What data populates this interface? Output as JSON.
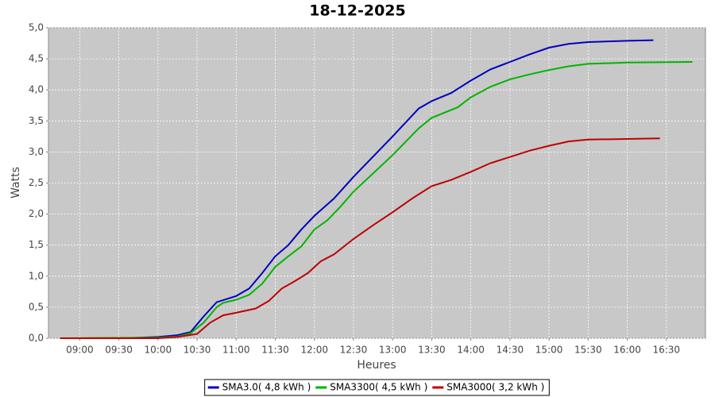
{
  "chart_data": {
    "type": "line",
    "title": "18-12-2025",
    "x_label": "Heures",
    "y_label": "Watts",
    "xlim": [
      "08:36",
      "17:00"
    ],
    "xticks": [
      "09:00",
      "09:30",
      "10:00",
      "10:30",
      "11:00",
      "11:30",
      "12:00",
      "12:30",
      "13:00",
      "13:30",
      "14:00",
      "14:30",
      "15:00",
      "15:30",
      "16:00",
      "16:30"
    ],
    "ylim": [
      0,
      5
    ],
    "yticks": [
      {
        "value": 0,
        "label": "0,0"
      },
      {
        "value": 0.5,
        "label": "0,5"
      },
      {
        "value": 1,
        "label": "1,0"
      },
      {
        "value": 1.5,
        "label": "1,5"
      },
      {
        "value": 2,
        "label": "2,0"
      },
      {
        "value": 2.5,
        "label": "2,5"
      },
      {
        "value": 3,
        "label": "3,0"
      },
      {
        "value": 3.5,
        "label": "3,5"
      },
      {
        "value": 4,
        "label": "4,0"
      },
      {
        "value": 4.5,
        "label": "4,5"
      },
      {
        "value": 5,
        "label": "5,0"
      }
    ],
    "grid": true,
    "legend": "bottom",
    "series": [
      {
        "name": "SMA3.0( 4,8 kWh )",
        "color": "#0000c0",
        "x": [
          "08:45",
          "09:30",
          "09:45",
          "10:00",
          "10:15",
          "10:25",
          "10:35",
          "10:45",
          "11:00",
          "11:10",
          "11:20",
          "11:30",
          "11:40",
          "11:50",
          "12:00",
          "12:15",
          "12:30",
          "13:00",
          "13:20",
          "13:30",
          "13:45",
          "14:00",
          "14:15",
          "14:30",
          "14:45",
          "15:00",
          "15:15",
          "15:30",
          "16:00",
          "16:20"
        ],
        "values": [
          0,
          0,
          0.01,
          0.02,
          0.05,
          0.1,
          0.35,
          0.58,
          0.68,
          0.8,
          1.05,
          1.32,
          1.5,
          1.75,
          1.97,
          2.25,
          2.6,
          3.25,
          3.7,
          3.82,
          3.95,
          4.15,
          4.33,
          4.45,
          4.57,
          4.68,
          4.74,
          4.77,
          4.79,
          4.8
        ]
      },
      {
        "name": "SMA3300( 4,5 kWh )",
        "color": "#00b400",
        "x": [
          "08:45",
          "10:00",
          "10:15",
          "10:25",
          "10:35",
          "10:45",
          "10:50",
          "11:00",
          "11:10",
          "11:20",
          "11:30",
          "11:40",
          "11:50",
          "12:00",
          "12:10",
          "12:20",
          "12:30",
          "13:00",
          "13:20",
          "13:30",
          "13:50",
          "14:00",
          "14:15",
          "14:30",
          "14:45",
          "15:00",
          "15:15",
          "15:30",
          "16:00",
          "16:50"
        ],
        "values": [
          0,
          0.01,
          0.03,
          0.08,
          0.25,
          0.5,
          0.57,
          0.62,
          0.7,
          0.88,
          1.15,
          1.32,
          1.48,
          1.75,
          1.9,
          2.12,
          2.36,
          2.95,
          3.38,
          3.55,
          3.72,
          3.88,
          4.05,
          4.17,
          4.25,
          4.32,
          4.38,
          4.42,
          4.44,
          4.45
        ]
      },
      {
        "name": "SMA3000( 3,2 kWh )",
        "color": "#c00000",
        "x": [
          "08:45",
          "10:00",
          "10:15",
          "10:30",
          "10:40",
          "10:50",
          "11:00",
          "11:15",
          "11:25",
          "11:35",
          "11:45",
          "11:55",
          "12:05",
          "12:15",
          "12:30",
          "12:45",
          "13:00",
          "13:15",
          "13:30",
          "13:45",
          "14:00",
          "14:15",
          "14:30",
          "14:45",
          "15:00",
          "15:15",
          "15:30",
          "16:00",
          "16:25"
        ],
        "values": [
          0,
          0,
          0.02,
          0.07,
          0.25,
          0.37,
          0.41,
          0.48,
          0.6,
          0.8,
          0.92,
          1.05,
          1.24,
          1.35,
          1.6,
          1.82,
          2.03,
          2.25,
          2.45,
          2.55,
          2.68,
          2.82,
          2.92,
          3.02,
          3.1,
          3.17,
          3.2,
          3.21,
          3.22
        ]
      }
    ]
  }
}
